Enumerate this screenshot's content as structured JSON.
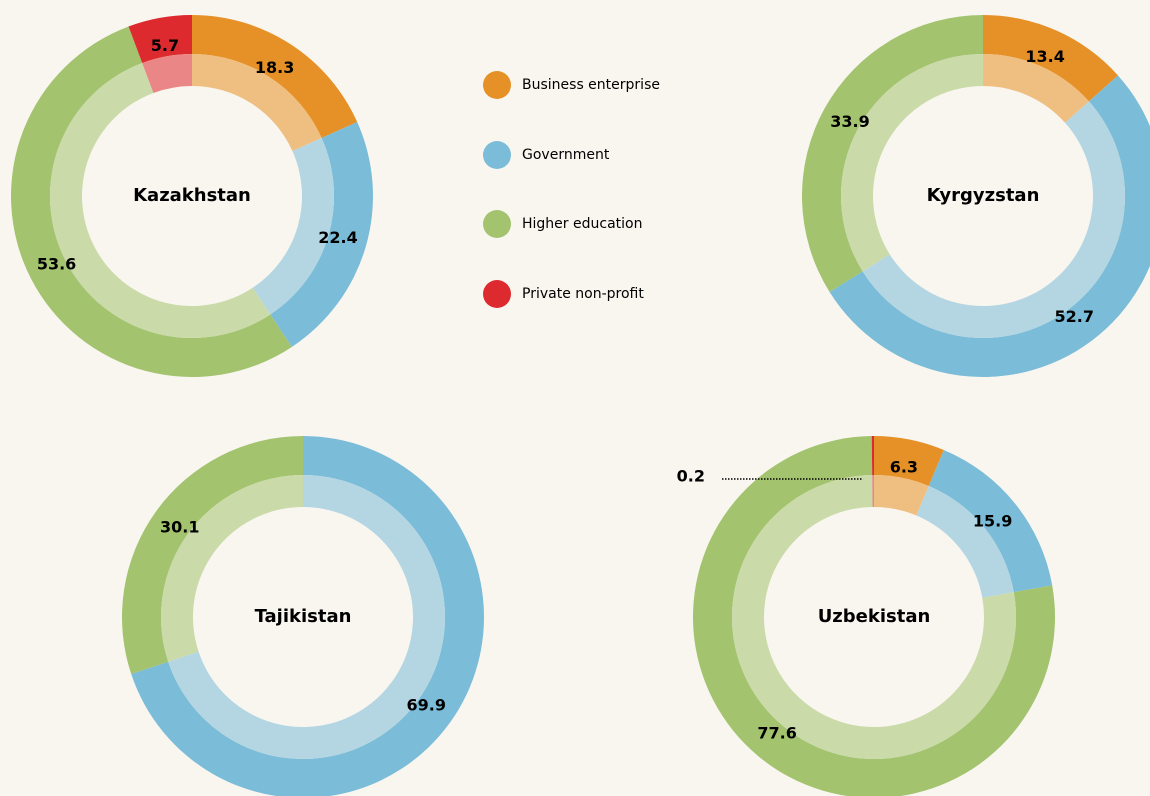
{
  "legend": {
    "labels": [
      "Business enterprise",
      "Government",
      "Higher education",
      "Private non-profit"
    ],
    "colors": [
      "#e69127",
      "#7bbcd8",
      "#a3c36f",
      "#dd2a2e"
    ]
  },
  "chart_data": [
    {
      "type": "donut",
      "title": "Kazakhstan",
      "categories": [
        "Business enterprise",
        "Government",
        "Higher education",
        "Private non-profit"
      ],
      "values": [
        18.3,
        22.4,
        53.6,
        5.7
      ]
    },
    {
      "type": "donut",
      "title": "Kyrgyzstan",
      "categories": [
        "Business enterprise",
        "Government",
        "Higher education"
      ],
      "values": [
        13.4,
        52.7,
        33.9
      ]
    },
    {
      "type": "donut",
      "title": "Tajikistan",
      "categories": [
        "Government",
        "Higher education"
      ],
      "values": [
        69.9,
        30.1
      ]
    },
    {
      "type": "donut",
      "title": "Uzbekistan",
      "categories": [
        "Business enterprise",
        "Government",
        "Higher education",
        "Private non-profit"
      ],
      "values": [
        6.3,
        15.9,
        77.6,
        0.2
      ]
    }
  ]
}
